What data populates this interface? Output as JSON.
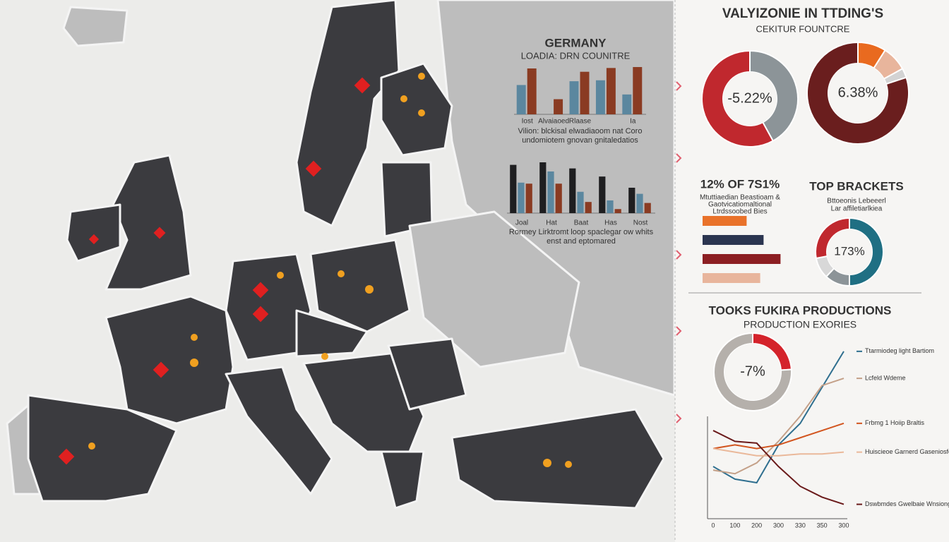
{
  "header": {
    "title": "VALYIZONIE IN TTDING'S",
    "subtitle": "CEKITUR FOUNTCRE"
  },
  "chart_data": [
    {
      "type": "bar",
      "title": "GERMANY",
      "subtitle": "LOADIA: DRN COUNITRE",
      "categories": [
        "Iost",
        "Alvaiaoed",
        "Rlaase",
        null,
        "Ia"
      ],
      "ylim": [
        0,
        100
      ],
      "series": [
        {
          "color": "#5b879f",
          "values": [
            62,
            0,
            70,
            72,
            42
          ]
        },
        {
          "color": "#8a3b22",
          "values": [
            97,
            32,
            90,
            98,
            100
          ]
        }
      ],
      "note": [
        "Vilion: blckisal elwadiaoom nat Coro",
        "undomiotem gnovan gnitaledatios"
      ]
    },
    {
      "type": "bar",
      "categories": [
        "Joal",
        "Hat",
        "Baat",
        "Has",
        "Nost"
      ],
      "ylim": [
        0,
        100
      ],
      "series": [
        {
          "color": "#1e1e20",
          "values": [
            95,
            100,
            88,
            72,
            50
          ]
        },
        {
          "color": "#5b879f",
          "values": [
            60,
            82,
            42,
            25,
            38
          ]
        },
        {
          "color": "#8a3b22",
          "values": [
            58,
            58,
            22,
            8,
            20
          ]
        }
      ],
      "note": [
        "Rormey Lirktromt loop spaclegar ow whits",
        "enst and eptomared"
      ]
    },
    {
      "type": "pie",
      "center_label": "-5.22%",
      "values": [
        42,
        58
      ],
      "colors": [
        "#8c9498",
        "#c0282e"
      ]
    },
    {
      "type": "pie",
      "center_label": "6.38%",
      "values": [
        9,
        8,
        3,
        80
      ],
      "colors": [
        "#e96a1f",
        "#e8b59c",
        "#d3d3d3",
        "#6a1e1e"
      ]
    },
    {
      "type": "hbar",
      "title": "12% OF 7S1%",
      "subtitle": [
        "Mtuttiaedian Beastioam &",
        "Gaotvicatiomaltional",
        "Ltrdssoobed Bies"
      ],
      "xlim": [
        0,
        100
      ],
      "values": [
        52,
        72,
        92,
        68
      ],
      "colors": [
        "#e9722a",
        "#2b3550",
        "#8c1e22",
        "#e8b59c"
      ]
    },
    {
      "type": "pie",
      "title": "TOP BRACKETS",
      "subtitle": [
        "Bttoeonis Lebeeerl",
        "Lar affiletiarlkiea"
      ],
      "center_label": "173%",
      "values": [
        50,
        12,
        10,
        28
      ],
      "colors": [
        "#1f6f83",
        "#8c9498",
        "#d8d8d8",
        "#c0282e"
      ]
    },
    {
      "type": "pie",
      "title": "TOOKS FUKIRA PRODUCTIONS",
      "subtitle": "PRODUCTION EXORIES",
      "center_label": "-7%",
      "values": [
        24,
        76
      ],
      "colors": [
        "#d4232b",
        "#b5b0ab"
      ]
    },
    {
      "type": "line",
      "categories": [
        "0",
        "100",
        "200",
        "300",
        "330",
        "350",
        "300"
      ],
      "ylim": [
        0,
        100
      ],
      "series": [
        {
          "name": "Ttarmiodeg light Bartiom",
          "color": "#2f6f8f",
          "values": [
            29,
            22,
            20,
            41,
            53,
            73,
            93
          ]
        },
        {
          "name": "Lcfeld Wdeme",
          "color": "#c4a088",
          "values": [
            27,
            25,
            31,
            43,
            57,
            74,
            78
          ]
        },
        {
          "name": "Frbmg 1 Hoiip Braltis",
          "color": "#d2551f",
          "values": [
            39,
            41,
            39,
            41,
            45,
            49,
            53
          ]
        },
        {
          "name": "Huiscieoe Garnerd Gaseniosfeit Bhme",
          "color": "#eab89a",
          "values": [
            39,
            37,
            35,
            35,
            36,
            36,
            37
          ]
        },
        {
          "name": "Dswbmdes Gwelbaie Wnsiong",
          "color": "#6a1a1a",
          "values": [
            49,
            43,
            42,
            29,
            18,
            12,
            8
          ]
        }
      ]
    }
  ]
}
